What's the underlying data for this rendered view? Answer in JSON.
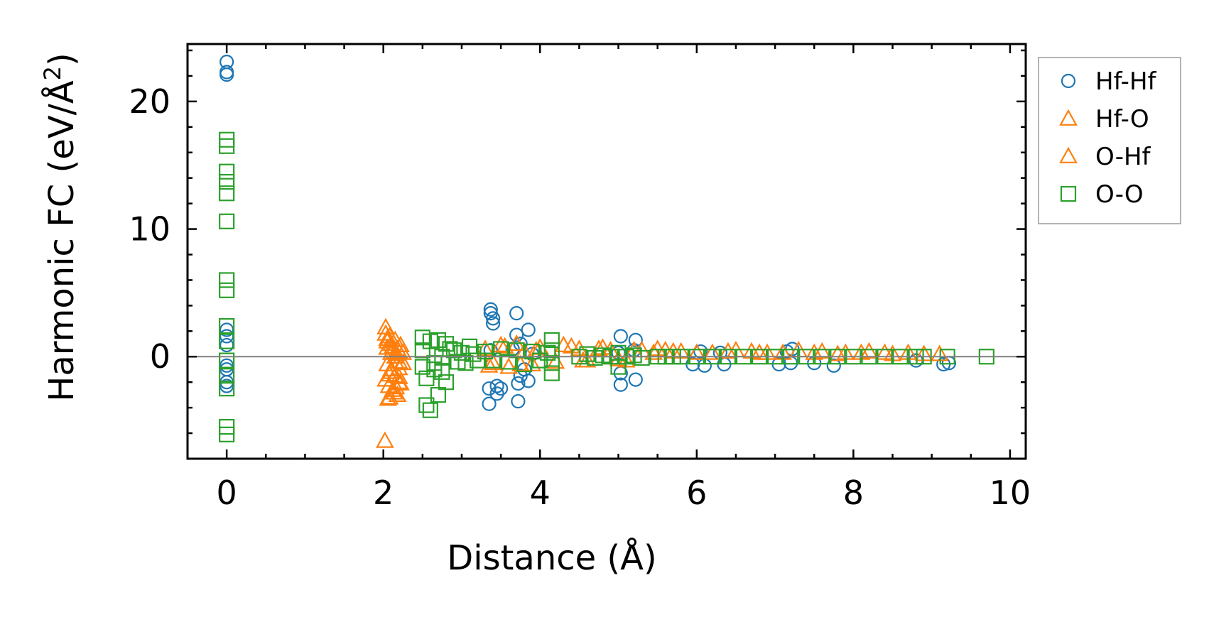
{
  "chart_data": {
    "type": "scatter",
    "title": "",
    "xlabel": "Distance (Å)",
    "ylabel_main": "Harmonic FC (eV/Å",
    "ylabel_sup": "2",
    "ylabel_close": ")",
    "xlim": [
      -0.5,
      10.2
    ],
    "ylim": [
      -8,
      24.5
    ],
    "xticks": [
      0,
      2,
      4,
      6,
      8,
      10
    ],
    "xtick_labels": [
      "0",
      "2",
      "4",
      "6",
      "8",
      "10"
    ],
    "yticks": [
      0,
      10,
      20
    ],
    "ytick_labels": [
      "0",
      "10",
      "20"
    ],
    "zero_line": 0,
    "grid": false,
    "legend_position": "outside-right",
    "series": [
      {
        "name": "Hf-Hf",
        "marker": "circle",
        "color": "#1f77b4",
        "x": [
          0,
          0,
          0,
          0,
          0,
          0,
          0,
          0,
          0,
          0,
          3.37,
          3.37,
          3.4,
          3.4,
          3.35,
          3.35,
          3.45,
          3.45,
          3.5,
          3.37,
          3.7,
          3.7,
          3.75,
          3.75,
          3.72,
          3.72,
          3.85,
          3.85,
          3.8,
          3.65,
          3.9,
          5.03,
          5.03,
          5.22,
          5.03,
          5.22,
          5.0,
          5.2,
          5.95,
          6.05,
          6.1,
          6.3,
          6.35,
          7.05,
          7.15,
          7.2,
          7.22,
          7.5,
          7.75,
          8.8,
          9.15,
          9.22
        ],
        "y": [
          23.1,
          22.3,
          22.1,
          2.1,
          1.6,
          0.9,
          -0.7,
          -1.0,
          -2.0,
          -2.3,
          3.7,
          3.4,
          3.0,
          2.6,
          -2.5,
          -3.7,
          -2.9,
          -2.3,
          -2.5,
          0.5,
          3.4,
          1.7,
          1.0,
          -1.5,
          -3.5,
          -2.1,
          2.1,
          -1.9,
          -1.0,
          0.6,
          0.2,
          1.6,
          -2.2,
          1.3,
          -1.3,
          -1.8,
          0.3,
          0.5,
          -0.6,
          0.4,
          -0.7,
          0.3,
          -0.6,
          -0.6,
          0.4,
          -0.5,
          0.6,
          -0.5,
          -0.7,
          -0.3,
          -0.6,
          -0.5
        ]
      },
      {
        "name": "Hf-O",
        "marker": "triangle",
        "color": "#ff7f0e",
        "x": [
          2.03,
          2.03,
          2.05,
          2.05,
          2.08,
          2.1,
          2.1,
          2.12,
          2.15,
          2.15,
          2.18,
          2.2,
          2.2,
          2.22,
          2.25,
          2.25,
          2.05,
          2.1,
          2.15,
          2.2,
          2.07,
          2.12,
          2.18,
          2.22,
          2.03,
          2.08,
          2.14,
          2.2,
          2.1,
          2.16,
          2.06,
          2.02,
          3.3,
          3.4,
          3.5,
          3.6,
          3.7,
          3.8,
          3.9,
          4.0,
          4.2,
          4.4,
          4.5,
          4.6,
          4.8,
          4.9,
          5.1,
          5.3,
          5.5,
          5.6,
          5.8,
          6.2,
          6.5,
          6.7,
          6.9,
          7.3,
          7.6,
          7.9,
          8.2,
          8.4,
          8.7,
          9.1
        ],
        "y": [
          2.3,
          1.8,
          1.2,
          0.7,
          1.6,
          1.0,
          0.3,
          0.8,
          1.3,
          0.0,
          0.6,
          -0.4,
          0.4,
          0.9,
          -0.5,
          0.3,
          -0.6,
          -1.0,
          -1.5,
          -2.0,
          -2.3,
          -2.6,
          -3.0,
          -2.1,
          -1.8,
          -3.2,
          -2.8,
          -1.6,
          -1.2,
          -2.4,
          -3.3,
          -6.6,
          0.6,
          -0.5,
          0.9,
          -0.8,
          1.0,
          0.4,
          -0.6,
          0.7,
          -0.4,
          0.8,
          0.6,
          -0.3,
          0.7,
          0.5,
          -0.3,
          0.5,
          0.6,
          0.5,
          0.4,
          0.3,
          0.5,
          0.4,
          0.3,
          0.5,
          0.4,
          0.3,
          0.4,
          0.3,
          0.3,
          0.2
        ]
      },
      {
        "name": "O-Hf",
        "marker": "triangle",
        "color": "#ff7f0e",
        "x": [
          2.05,
          2.12,
          2.2,
          2.08,
          2.17,
          3.35,
          3.55,
          3.75,
          3.95,
          4.3,
          4.55,
          4.75,
          5.0,
          5.2,
          5.45,
          5.7,
          6.0,
          6.4,
          6.8,
          7.1,
          7.5,
          7.8,
          8.1,
          8.5,
          8.9
        ],
        "y": [
          1.4,
          0.5,
          -0.9,
          -1.4,
          0.2,
          -0.7,
          0.8,
          -0.6,
          0.5,
          0.9,
          -0.3,
          0.6,
          -0.2,
          0.5,
          0.3,
          0.4,
          0.3,
          0.4,
          0.3,
          0.3,
          0.3,
          0.2,
          0.3,
          0.2,
          0.2
        ]
      },
      {
        "name": "O-O",
        "marker": "square",
        "color": "#2ca02c",
        "x": [
          0,
          0,
          0,
          0,
          0,
          0,
          0,
          0,
          0,
          0,
          0,
          0,
          0,
          0,
          0,
          2.5,
          2.5,
          2.5,
          2.55,
          2.55,
          2.6,
          2.6,
          2.65,
          2.65,
          2.7,
          2.7,
          2.75,
          2.75,
          2.8,
          2.8,
          2.85,
          2.9,
          2.95,
          3.0,
          3.05,
          3.1,
          3.15,
          3.2,
          3.3,
          3.4,
          3.5,
          3.6,
          3.7,
          3.8,
          3.9,
          4.0,
          4.1,
          4.15,
          4.15,
          4.15,
          4.15,
          4.5,
          4.6,
          4.7,
          4.8,
          4.9,
          5.0,
          5.0,
          5.1,
          5.2,
          5.3,
          5.5,
          5.6,
          5.7,
          5.8,
          6.0,
          6.2,
          6.4,
          6.6,
          6.8,
          7.0,
          7.2,
          7.4,
          7.6,
          7.8,
          8.0,
          8.2,
          8.4,
          8.6,
          8.8,
          8.9,
          9.2,
          9.7
        ],
        "y": [
          17.0,
          16.5,
          14.5,
          13.7,
          12.8,
          10.6,
          6.0,
          5.2,
          2.4,
          1.2,
          -0.3,
          -1.5,
          -2.5,
          -5.5,
          -6.1,
          1.5,
          0.5,
          -0.8,
          -1.7,
          -3.8,
          -4.2,
          1.2,
          -0.5,
          -1.0,
          -3.0,
          1.3,
          0.0,
          -1.2,
          -2.0,
          1.0,
          0.6,
          0.5,
          -0.4,
          0.3,
          -0.5,
          0.8,
          0.2,
          -0.3,
          0.4,
          -0.3,
          0.6,
          -0.4,
          0.5,
          -0.6,
          0.4,
          -0.3,
          0.3,
          1.3,
          0.5,
          -0.5,
          -1.3,
          0.0,
          0.2,
          -0.1,
          0.1,
          0.0,
          -0.8,
          0.3,
          0.0,
          0.1,
          -0.1,
          0.0,
          0.0,
          0.0,
          0.0,
          0.0,
          0.0,
          0.0,
          0.0,
          0.0,
          0.0,
          0.0,
          0.0,
          0.0,
          0.0,
          0.0,
          0.0,
          0.0,
          0.0,
          0.0,
          0.0,
          0.0,
          0.0
        ]
      }
    ]
  }
}
